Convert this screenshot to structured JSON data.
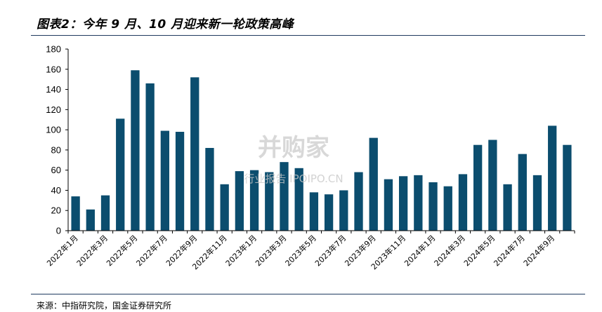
{
  "figure": {
    "title": "图表2：今年 9 月、10 月迎来新一轮政策高峰",
    "source": "来源：中指研究院，国金证券研究所"
  },
  "watermark": {
    "brand": "并购家",
    "sub": "行业报告 IPOIPO.CN"
  },
  "colors": {
    "bar": "#0b4d6e"
  },
  "chart_data": {
    "type": "bar",
    "ylim": [
      0,
      180
    ],
    "yticks": [
      0,
      20,
      40,
      60,
      80,
      100,
      120,
      140,
      160,
      180
    ],
    "tick_labels": [
      "2022年1月",
      "2022年3月",
      "2022年5月",
      "2022年7月",
      "2022年9月",
      "2022年11月",
      "2023年1月",
      "2023年3月",
      "2023年5月",
      "2023年7月",
      "2023年9月",
      "2023年11月",
      "2024年1月",
      "2024年3月",
      "2024年5月",
      "2024年7月",
      "2024年9月"
    ],
    "categories": [
      "2022-01",
      "2022-02",
      "2022-03",
      "2022-04",
      "2022-05",
      "2022-06",
      "2022-07",
      "2022-08",
      "2022-09",
      "2022-10",
      "2022-11",
      "2022-12",
      "2023-01",
      "2023-02",
      "2023-03",
      "2023-04",
      "2023-05",
      "2023-06",
      "2023-07",
      "2023-08",
      "2023-09",
      "2023-10",
      "2023-11",
      "2023-12",
      "2024-01",
      "2024-02",
      "2024-03",
      "2024-04",
      "2024-05",
      "2024-06",
      "2024-07",
      "2024-08",
      "2024-09",
      "2024-10"
    ],
    "values": [
      34,
      21,
      35,
      111,
      159,
      146,
      99,
      98,
      152,
      82,
      46,
      59,
      60,
      58,
      68,
      62,
      38,
      36,
      40,
      58,
      92,
      51,
      54,
      55,
      48,
      44,
      56,
      85,
      90,
      46,
      76,
      55,
      104,
      85
    ]
  }
}
